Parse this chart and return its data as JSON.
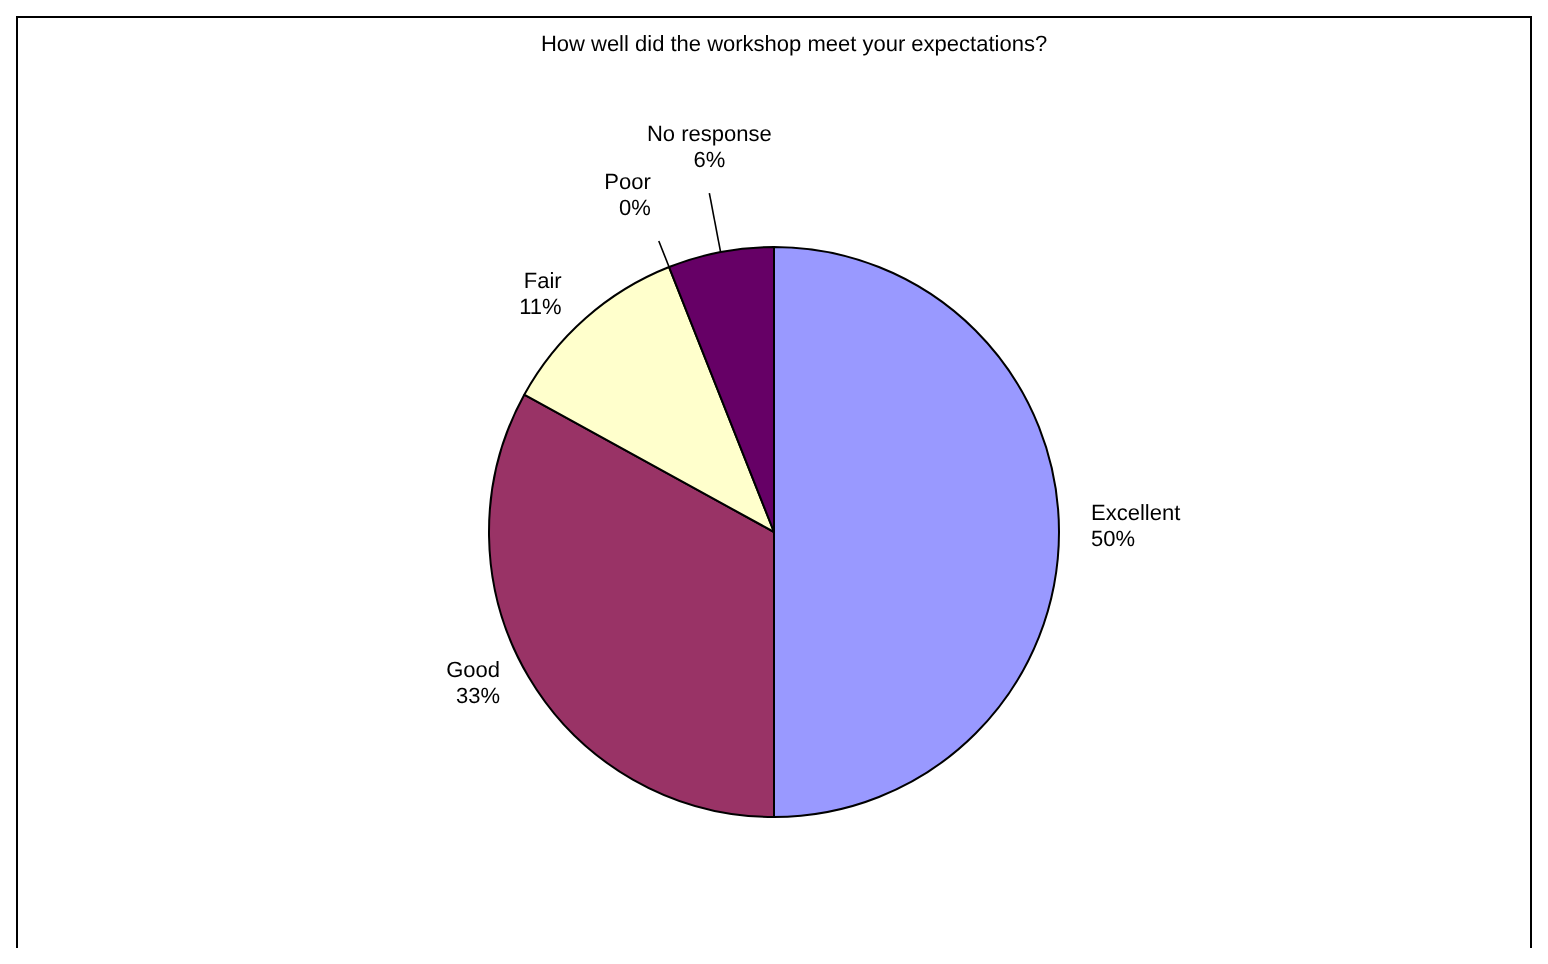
{
  "chart_data": {
    "type": "pie",
    "title": "How well did the workshop meet your expectations?",
    "categories": [
      "Excellent",
      "Good",
      "Fair",
      "Poor",
      "No response"
    ],
    "values": [
      50,
      33,
      11,
      0,
      6
    ],
    "colors": [
      "#9999ff",
      "#993366",
      "#ffffcc",
      "#ffffff",
      "#660066"
    ],
    "value_labels": [
      "50%",
      "33%",
      "11%",
      "0%",
      "6%"
    ],
    "legend": false
  }
}
